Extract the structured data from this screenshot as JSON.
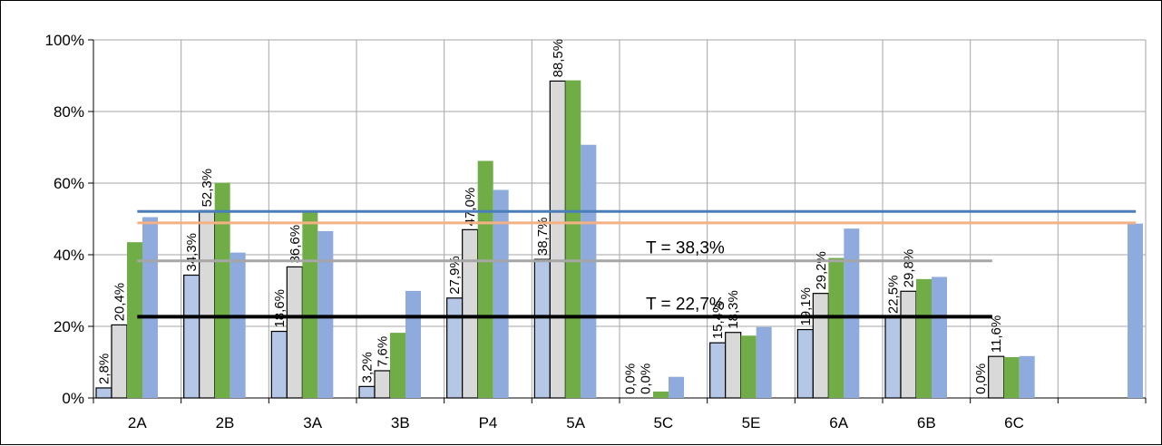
{
  "chart_data": {
    "type": "bar",
    "categories": [
      "2A",
      "2B",
      "3A",
      "3B",
      "P4",
      "5A",
      "5C",
      "5E",
      "6A",
      "6B",
      "6C",
      ""
    ],
    "series": [
      {
        "values": [
          2.8,
          34.3,
          18.6,
          3.2,
          27.9,
          38.7,
          0.0,
          15.4,
          19.1,
          22.5,
          0.0,
          null
        ],
        "color": "#b4c7e7"
      },
      {
        "values": [
          20.4,
          52.3,
          36.6,
          7.6,
          47.0,
          88.5,
          0.0,
          18.3,
          29.2,
          29.8,
          11.6,
          null
        ],
        "color": "#d9d9d9"
      },
      {
        "values": [
          43.5,
          60.1,
          52.0,
          18.2,
          66.2,
          88.7,
          1.8,
          17.4,
          39.1,
          33.2,
          11.4,
          null
        ],
        "color": "#70ad47"
      },
      {
        "values": [
          50.5,
          40.6,
          46.6,
          29.9,
          58.1,
          70.7,
          5.9,
          19.8,
          47.3,
          33.8,
          11.7,
          48.7
        ],
        "color": "#8faadc"
      }
    ],
    "data_labels": [
      "2,8%",
      "20,4%",
      "34,3%",
      "52,3%",
      "18,6%",
      "36,6%",
      "3,2%",
      "7,6%",
      "27,9%",
      "47,0%",
      "38,7%",
      "88,5%",
      "0,0%",
      "0,0%",
      "15,4%",
      "18,3%",
      "19,1%",
      "29,2%",
      "22,5%",
      "29,8%",
      "0,0%",
      "11,6%"
    ],
    "reference_lines": [
      {
        "value": 52.1,
        "color": "#4a7ebb"
      },
      {
        "value": 48.9,
        "color": "#f4b183"
      },
      {
        "value": 38.3,
        "color": "#a6a6a6",
        "label": "T = 38,3%"
      },
      {
        "value": 22.7,
        "color": "#000000",
        "label": "T = 22,7%"
      }
    ],
    "ylim": [
      0,
      100
    ],
    "y_ticks": [
      "0%",
      "20%",
      "40%",
      "60%",
      "80%",
      "100%"
    ],
    "grid": true,
    "legend": "none"
  }
}
